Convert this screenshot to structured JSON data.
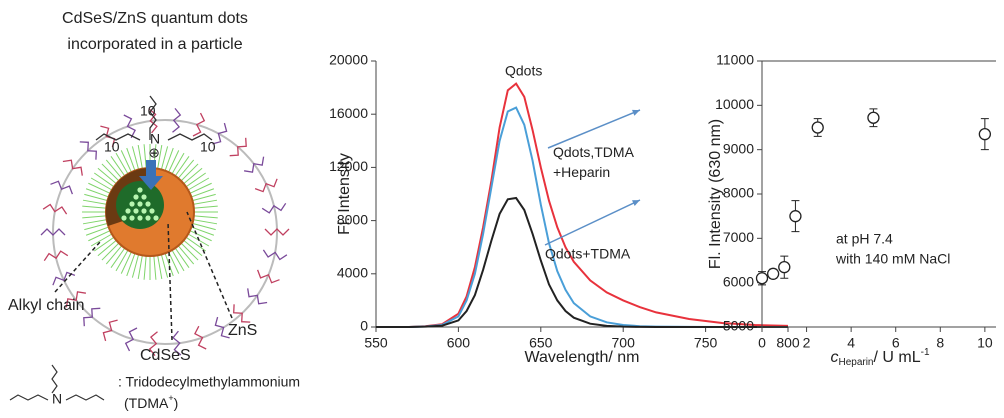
{
  "diagram": {
    "title": [
      "CdSeS/ZnS quantum dots",
      "incorporated in a particle"
    ],
    "labels": {
      "alkyl_chain": "Alkyl chain",
      "core": "CdSeS",
      "shell": "ZnS"
    },
    "structure": {
      "nitrogen": "N",
      "charge": "⊕",
      "chain_count": "10"
    },
    "legend": {
      "name": ": Tridodecylmethylammonium",
      "abbrev": "(TDMA",
      "superscript": "+",
      "close": ")"
    }
  },
  "chart_data": [
    {
      "type": "line",
      "x_label": "Wavelength/ nm",
      "y_label": "Fl. Intensity",
      "x": [
        550,
        560,
        570,
        580,
        590,
        600,
        605,
        610,
        615,
        620,
        625,
        630,
        635,
        640,
        645,
        650,
        655,
        660,
        665,
        670,
        680,
        690,
        700,
        710,
        720,
        740,
        760,
        780,
        800
      ],
      "series": [
        {
          "name": "Qdots",
          "color": "#e8323c",
          "values": [
            0,
            0,
            0,
            50,
            200,
            1000,
            2300,
            4500,
            7500,
            11000,
            15000,
            17800,
            18300,
            17300,
            14800,
            12000,
            9500,
            7500,
            6000,
            4900,
            3500,
            2600,
            2000,
            1500,
            1100,
            600,
            300,
            150,
            80
          ]
        },
        {
          "name": "Qdots,TDMA +Heparin",
          "color": "#4a9fd8",
          "values": [
            0,
            0,
            0,
            40,
            150,
            800,
            2000,
            4000,
            7000,
            10500,
            14000,
            16200,
            16500,
            15200,
            12500,
            9200,
            6300,
            4200,
            2800,
            1800,
            800,
            350,
            150,
            60,
            30,
            10,
            0,
            0,
            0
          ]
        },
        {
          "name": "Qdots+TDMA",
          "color": "#222222",
          "values": [
            0,
            0,
            0,
            30,
            100,
            500,
            1200,
            2400,
            4300,
            6500,
            8500,
            9600,
            9700,
            8800,
            7000,
            5000,
            3200,
            2000,
            1200,
            700,
            250,
            80,
            30,
            10,
            0,
            0,
            0,
            0,
            0
          ]
        }
      ],
      "xlim": [
        550,
        800
      ],
      "xticks": [
        550,
        600,
        650,
        700,
        750,
        800
      ],
      "ylim": [
        0,
        20000
      ],
      "yticks": [
        0,
        4000,
        8000,
        12000,
        16000,
        20000
      ]
    },
    {
      "type": "scatter",
      "x_label": {
        "symbol": "c",
        "subscript": "Heparin",
        "unit": "/ U mL",
        "exponent": "-1"
      },
      "y_label": "Fl. Intensity (630 nm)",
      "annotations": [
        "at pH 7.4",
        "with 140 mM NaCl"
      ],
      "x": [
        0,
        0.5,
        1,
        1.5,
        2.5,
        5,
        10
      ],
      "values": [
        6100,
        6200,
        6350,
        7500,
        9500,
        9720,
        9350
      ],
      "errors": [
        150,
        100,
        250,
        350,
        200,
        200,
        350
      ],
      "color": "#222222",
      "xlim": [
        0,
        10.5
      ],
      "xticks": [
        0,
        2,
        4,
        6,
        8,
        10
      ],
      "ylim": [
        5000,
        11000
      ],
      "yticks": [
        5000,
        6000,
        7000,
        8000,
        9000,
        10000,
        11000
      ]
    }
  ]
}
